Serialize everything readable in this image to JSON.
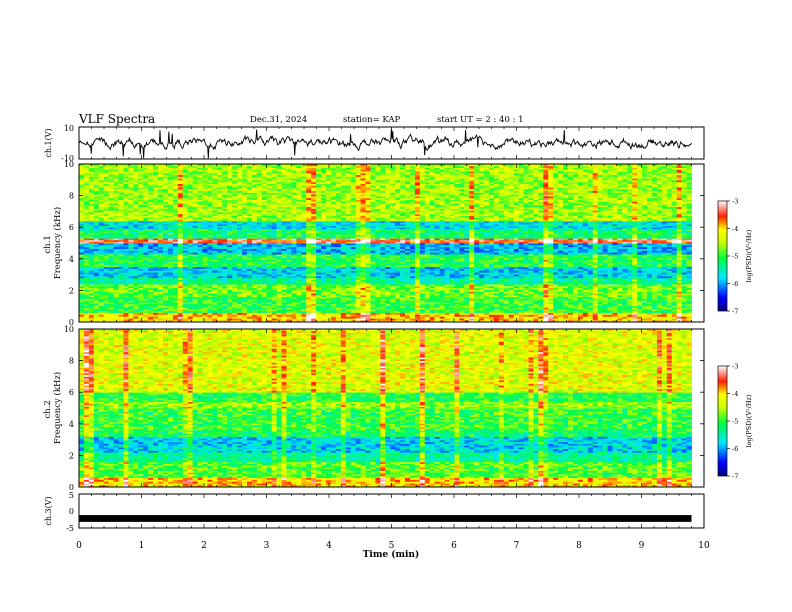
{
  "header": {
    "title": "VLF Spectra",
    "date": "Dec.31, 2024",
    "station": "station= KAP",
    "start_ut": "start  UT  =   2  : 40 : 1"
  },
  "chart_data": [
    {
      "panel": "ch1-waveform",
      "type": "line",
      "ylabel": "ch.1(V)",
      "ylim": [
        -10,
        10
      ],
      "y_ticks": [
        "10",
        "-10"
      ],
      "xlim": [
        0,
        9.8
      ],
      "description_values": {
        "mean": 0,
        "amplitude_approx": 4
      }
    },
    {
      "panel": "ch1-spectrogram",
      "type": "heatmap",
      "ylabel": "ch.1\nFrequency (kHz)",
      "ylim": [
        0,
        10
      ],
      "y_ticks": [
        "0",
        "2",
        "4",
        "6",
        "8",
        "10"
      ],
      "xlim": [
        0,
        9.8
      ],
      "colorbar": {
        "label": "log(PSD)(V²/Hz)",
        "range": [
          -7,
          -3
        ],
        "ticks": [
          "-3",
          "-4",
          "-5",
          "-6",
          "-7"
        ]
      },
      "bands_kHz": [
        {
          "from": 0.0,
          "to": 0.6,
          "level": -4.0
        },
        {
          "from": 0.6,
          "to": 1.6,
          "level": -5.0
        },
        {
          "from": 1.6,
          "to": 2.4,
          "level": -4.8
        },
        {
          "from": 2.4,
          "to": 2.8,
          "level": -5.4
        },
        {
          "from": 2.8,
          "to": 3.5,
          "level": -5.8
        },
        {
          "from": 3.5,
          "to": 4.3,
          "level": -5.1
        },
        {
          "from": 4.3,
          "to": 5.0,
          "level": -5.9
        },
        {
          "from": 5.0,
          "to": 5.3,
          "level": -3.5
        },
        {
          "from": 5.3,
          "to": 5.9,
          "level": -5.2
        },
        {
          "from": 5.9,
          "to": 6.4,
          "level": -5.7
        },
        {
          "from": 6.4,
          "to": 10.0,
          "level": -4.6
        }
      ]
    },
    {
      "panel": "ch2-spectrogram",
      "type": "heatmap",
      "ylabel": "ch.2\nFrequency (kHz)",
      "ylim": [
        0,
        10
      ],
      "y_ticks": [
        "0",
        "2",
        "4",
        "6",
        "8",
        "10"
      ],
      "xlim": [
        0,
        9.8
      ],
      "colorbar": {
        "label": "log(PSD)(V²/Hz)",
        "range": [
          -7,
          -3
        ],
        "ticks": [
          "-3",
          "-4",
          "-5",
          "-6",
          "-7"
        ]
      },
      "bands_kHz": [
        {
          "from": 0.0,
          "to": 0.6,
          "level": -4.0
        },
        {
          "from": 0.6,
          "to": 1.6,
          "level": -4.9
        },
        {
          "from": 1.6,
          "to": 2.2,
          "level": -5.4
        },
        {
          "from": 2.2,
          "to": 3.2,
          "level": -5.8
        },
        {
          "from": 3.2,
          "to": 3.6,
          "level": -5.2
        },
        {
          "from": 3.6,
          "to": 5.0,
          "level": -5.0
        },
        {
          "from": 5.0,
          "to": 5.4,
          "level": -4.6
        },
        {
          "from": 5.4,
          "to": 6.0,
          "level": -5.1
        },
        {
          "from": 6.0,
          "to": 10.0,
          "level": -4.3
        }
      ]
    },
    {
      "panel": "ch3-waveform",
      "type": "line",
      "ylabel": "ch.3(V)",
      "ylim": [
        -5,
        5
      ],
      "y_ticks": [
        "5",
        "0",
        "-5"
      ],
      "xlim": [
        0,
        9.8
      ],
      "description_values": {
        "mean": -2.2,
        "amplitude_approx": 0.4
      }
    }
  ],
  "x_axis": {
    "label": "Time (min)",
    "range": [
      0,
      10
    ],
    "ticks": [
      "0",
      "1",
      "2",
      "3",
      "4",
      "5",
      "6",
      "7",
      "8",
      "9",
      "10"
    ]
  }
}
